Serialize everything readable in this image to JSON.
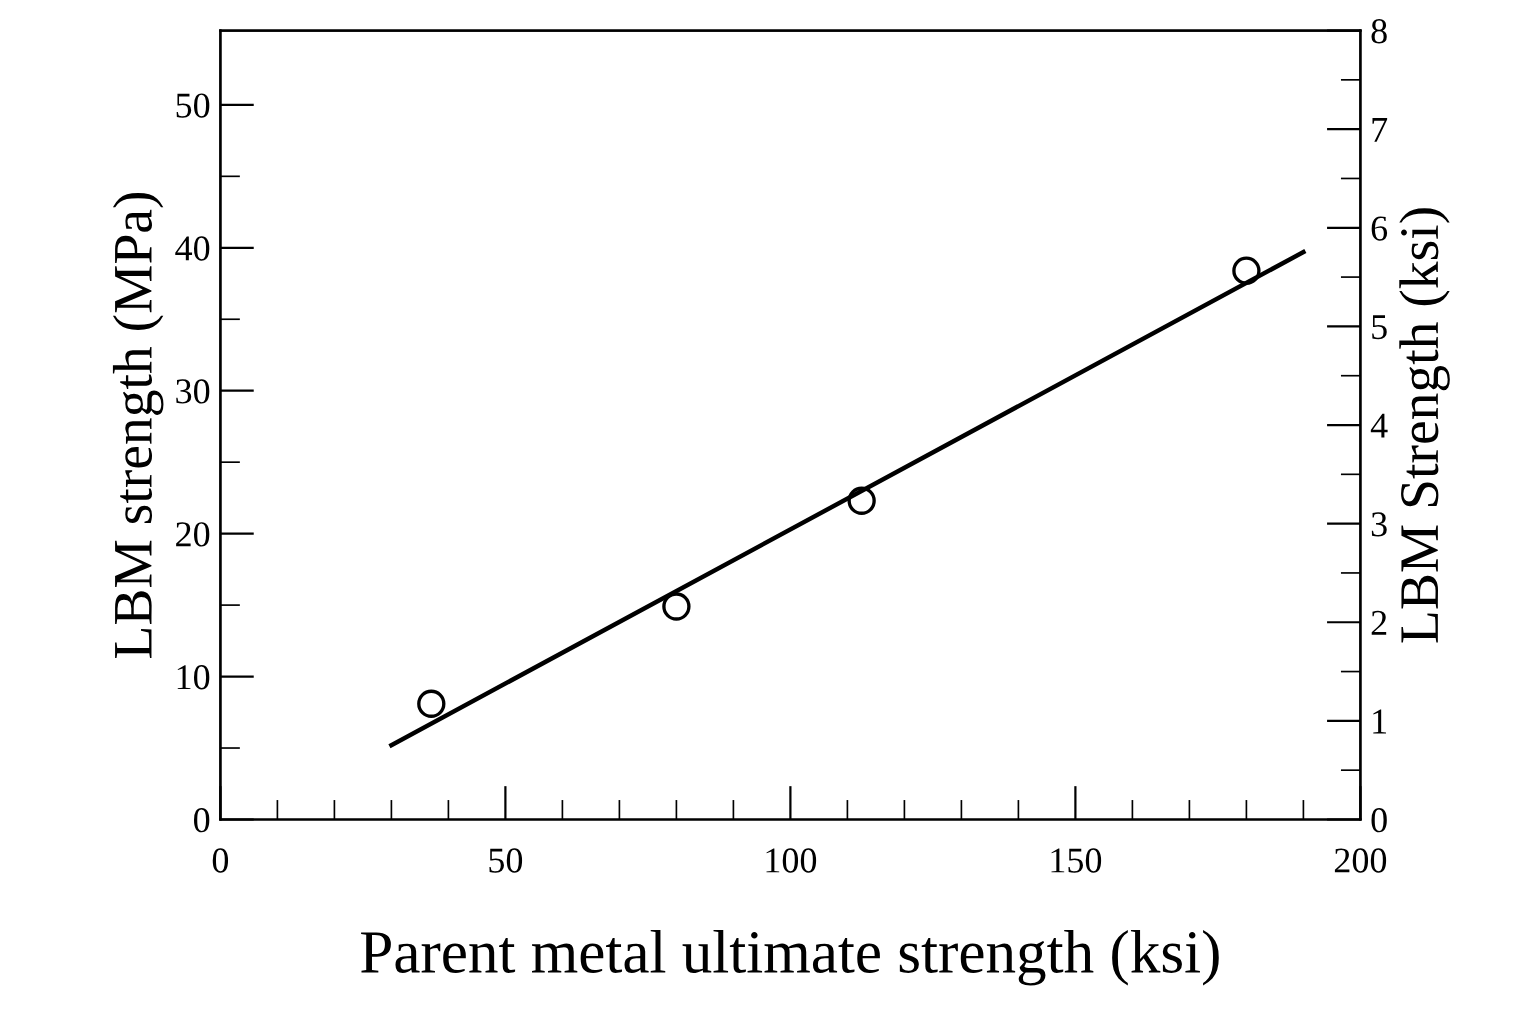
{
  "chart_data": {
    "type": "scatter",
    "xlabel": "Parent metal ultimate strength (ksi)",
    "ylabel": "LBM strength (MPa)",
    "y2label": "LBM Strength (ksi)",
    "xlim": [
      0,
      200
    ],
    "ylim": [
      0,
      55.2
    ],
    "y2lim": [
      0,
      8
    ],
    "xticks": [
      0,
      {
        "value": 10,
        "label": null
      },
      {
        "value": 20,
        "label": null
      },
      {
        "value": 30,
        "label": null
      },
      {
        "value": 40,
        "label": null
      },
      50,
      {
        "value": 60,
        "label": null
      },
      {
        "value": 70,
        "label": null
      },
      {
        "value": 80,
        "label": null
      },
      {
        "value": 90,
        "label": null
      },
      100,
      {
        "value": 110,
        "label": null
      },
      {
        "value": 120,
        "label": null
      },
      {
        "value": 130,
        "label": null
      },
      {
        "value": 140,
        "label": null
      },
      150,
      {
        "value": 160,
        "label": null
      },
      {
        "value": 170,
        "label": null
      },
      {
        "value": 180,
        "label": null
      },
      {
        "value": 190,
        "label": null
      },
      200
    ],
    "yticks": [
      0,
      {
        "value": 5,
        "label": null
      },
      10,
      {
        "value": 15,
        "label": null
      },
      20,
      {
        "value": 25,
        "label": null
      },
      30,
      {
        "value": 35,
        "label": null
      },
      40,
      {
        "value": 45,
        "label": null
      },
      50
    ],
    "y2ticks": [
      0,
      {
        "value": 0.5,
        "label": null
      },
      1,
      {
        "value": 1.5,
        "label": null
      },
      2,
      {
        "value": 2.5,
        "label": null
      },
      3,
      {
        "value": 3.5,
        "label": null
      },
      4,
      {
        "value": 4.5,
        "label": null
      },
      5,
      {
        "value": 5.5,
        "label": null
      },
      6,
      {
        "value": 6.5,
        "label": null
      },
      7,
      {
        "value": 7.5,
        "label": null
      },
      8
    ],
    "grid": false,
    "legend": false,
    "series": [
      {
        "color": "#000000",
        "marker": "circle",
        "x": [
          37,
          80,
          112.5,
          180
        ],
        "values": [
          8.1,
          14.9,
          22.3,
          38.4
        ]
      },
      {
        "type": "line",
        "color": "#000000",
        "marker": "none",
        "line_style": "solid",
        "x": [
          30,
          190
        ],
        "values": [
          5.2,
          39.7
        ]
      }
    ]
  }
}
